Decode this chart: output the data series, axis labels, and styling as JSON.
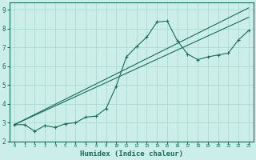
{
  "title": "",
  "xlabel": "Humidex (Indice chaleur)",
  "bg_color": "#cceee8",
  "grid_color": "#aaddcc",
  "line_color": "#1a6b5a",
  "xlim": [
    -0.5,
    23.5
  ],
  "ylim": [
    2.0,
    9.4
  ],
  "yticks": [
    2,
    3,
    4,
    5,
    6,
    7,
    8,
    9
  ],
  "xticks": [
    0,
    1,
    2,
    3,
    4,
    5,
    6,
    7,
    8,
    9,
    10,
    11,
    12,
    13,
    14,
    15,
    16,
    17,
    18,
    19,
    20,
    21,
    22,
    23
  ],
  "line1_x": [
    0,
    1,
    2,
    3,
    4,
    5,
    6,
    7,
    8,
    9,
    10,
    11,
    12,
    13,
    14,
    15,
    16,
    17,
    18,
    19,
    20,
    21,
    22,
    23
  ],
  "line1_y": [
    2.9,
    2.9,
    2.55,
    2.85,
    2.75,
    2.95,
    3.0,
    3.3,
    3.35,
    3.75,
    4.95,
    6.5,
    7.05,
    7.55,
    8.35,
    8.4,
    7.35,
    6.65,
    6.35,
    6.5,
    6.6,
    6.7,
    7.4,
    7.9
  ],
  "line2_x": [
    0,
    23
  ],
  "line2_y": [
    2.9,
    9.1
  ],
  "line3_x": [
    0,
    23
  ],
  "line3_y": [
    2.9,
    8.6
  ]
}
